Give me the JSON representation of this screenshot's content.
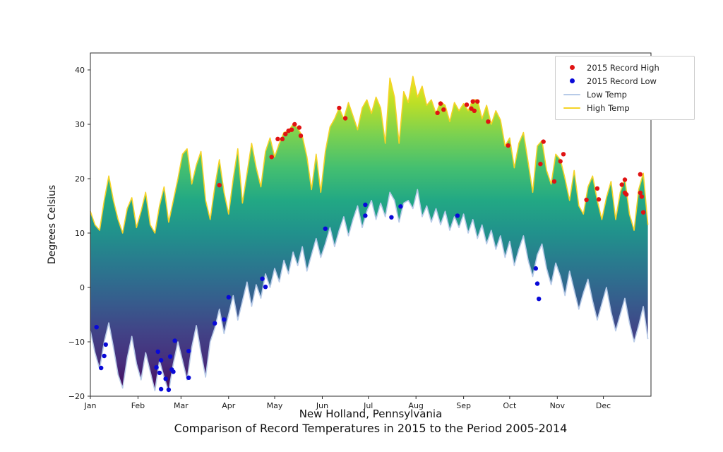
{
  "chart": {
    "ylabel": "Degrees Celsius",
    "xlabel": "New Holland, Pennsylvania",
    "caption": "Comparison of Record Temperatures in 2015 to the Period 2005-2014",
    "y_tick_labels": [
      "40",
      "30",
      "20",
      "10",
      "0",
      "−10",
      "−20"
    ],
    "x_tick_labels": [
      "Jan",
      "Feb",
      "Mar",
      "Apr",
      "May",
      "Jun",
      "Jul",
      "Aug",
      "Sep",
      "Oct",
      "Nov",
      "Dec"
    ],
    "legend": {
      "items": [
        {
          "label": "2015 Record High",
          "marker": "dot",
          "color_key": "record_high"
        },
        {
          "label": "2015 Record Low",
          "marker": "dot",
          "color_key": "record_low"
        },
        {
          "label": "Low Temp",
          "marker": "line",
          "color_key": "low_line"
        },
        {
          "label": "High Temp",
          "marker": "line",
          "color_key": "high_line"
        }
      ]
    },
    "colors": {
      "high_line": "#f5d327",
      "low_line": "#b8cbe8",
      "record_high": "#e01313",
      "record_low": "#0909d8",
      "spine": "#2b2b2b",
      "tick_text": "#1a1a1a",
      "viridis_top_to_bottom": [
        "#fde725",
        "#bddf26",
        "#7ad151",
        "#44bf70",
        "#22a884",
        "#21918c",
        "#2a788e",
        "#355f8d",
        "#414487",
        "#472d7b",
        "#440154"
      ]
    }
  },
  "chart_data": {
    "type": "area",
    "title": "Comparison of Record Temperatures in 2015 to the Period 2005-2014",
    "location": "New Holland, Pennsylvania",
    "ylabel": "Degrees Celsius",
    "ylim": [
      -20,
      43
    ],
    "y_tick_values": [
      40,
      30,
      20,
      10,
      0,
      -10,
      -20
    ],
    "x_unit": "day_of_year",
    "days_in_year": 365,
    "month_start_days": [
      0,
      31,
      59,
      90,
      120,
      151,
      181,
      212,
      243,
      273,
      304,
      334
    ],
    "sample_step_days": 3,
    "series": [
      {
        "name": "High Temp",
        "values": [
          14,
          11.5,
          10.5,
          16,
          20.5,
          16,
          12.5,
          10,
          14.5,
          16.5,
          11,
          14,
          17.5,
          11.5,
          10,
          15,
          18.5,
          12,
          16,
          20,
          24.5,
          25.5,
          19,
          22.5,
          25,
          16,
          12.5,
          18.5,
          23.5,
          17.5,
          13.5,
          20,
          25.5,
          15.5,
          21,
          26.5,
          22,
          18.5,
          25,
          27.5,
          24,
          26.5,
          28.5,
          28.8,
          30,
          29.3,
          27.8,
          24,
          18,
          24.5,
          17.5,
          25,
          29.5,
          31,
          33,
          31,
          34,
          31.5,
          29,
          33,
          34.5,
          32,
          35,
          33,
          26.5,
          38.5,
          35,
          26.5,
          36,
          34,
          38.8,
          35,
          37,
          33.5,
          34.5,
          32,
          34.2,
          33.5,
          30.5,
          34,
          32.5,
          33.8,
          32.5,
          34.5,
          34.5,
          31,
          33.5,
          30,
          32.5,
          30.8,
          26,
          27.5,
          22,
          26.5,
          28.5,
          23,
          17.5,
          26,
          27,
          21.5,
          19,
          24.5,
          23.5,
          20,
          16,
          21.5,
          15,
          13.5,
          18.5,
          20.5,
          16,
          12.5,
          16.5,
          19.5,
          12.5,
          17.5,
          20,
          13.5,
          10.5,
          18,
          21,
          11.5
        ]
      },
      {
        "name": "Low Temp",
        "values": [
          -8,
          -12,
          -15,
          -10,
          -6.5,
          -11,
          -16,
          -18.5,
          -13,
          -9,
          -14,
          -17,
          -12,
          -15.5,
          -19,
          -13.5,
          -16.5,
          -19.2,
          -14,
          -10,
          -13.5,
          -17,
          -11,
          -7,
          -12,
          -16.5,
          -10,
          -7.5,
          -4,
          -8.5,
          -5,
          -1.5,
          -6,
          -2.5,
          1,
          -3.5,
          0.5,
          -2,
          2.5,
          0,
          3.5,
          1,
          5,
          2.5,
          6.5,
          4,
          7.5,
          3,
          6,
          9,
          5.5,
          8,
          11,
          7.5,
          10.5,
          13,
          9.5,
          12.5,
          15,
          11,
          14,
          16,
          12.5,
          15.5,
          13,
          17.5,
          16,
          12,
          15.5,
          16,
          14.5,
          18,
          13,
          15,
          12,
          14.5,
          11.5,
          14,
          10.5,
          13,
          11,
          13.5,
          10,
          12.5,
          9,
          11.5,
          8,
          10.5,
          7,
          9.5,
          5.5,
          8.5,
          4,
          7,
          9.5,
          5,
          2,
          6,
          8,
          3.5,
          0.5,
          4.5,
          2,
          -1.5,
          3,
          -0.5,
          -4,
          -1,
          1.5,
          -2.5,
          -6,
          -3,
          0,
          -4.5,
          -8,
          -5,
          -2,
          -6.5,
          -10,
          -7,
          -3.5,
          -9.5
        ]
      }
    ],
    "record_high_points": [
      [
        84,
        18.8
      ],
      [
        118,
        24
      ],
      [
        122,
        27.3
      ],
      [
        125,
        27.3
      ],
      [
        127,
        28.2
      ],
      [
        129,
        28.8
      ],
      [
        131,
        29
      ],
      [
        133,
        30
      ],
      [
        136,
        29.4
      ],
      [
        137,
        27.9
      ],
      [
        162,
        33
      ],
      [
        166,
        31.1
      ],
      [
        226,
        32.1
      ],
      [
        228,
        33.8
      ],
      [
        230,
        32.7
      ],
      [
        245,
        33.6
      ],
      [
        248,
        32.9
      ],
      [
        249,
        34.2
      ],
      [
        250,
        32.5
      ],
      [
        252,
        34.2
      ],
      [
        259,
        30.5
      ],
      [
        272,
        26.1
      ],
      [
        293,
        22.7
      ],
      [
        295,
        26.8
      ],
      [
        302,
        19.5
      ],
      [
        306,
        23.2
      ],
      [
        308,
        24.5
      ],
      [
        323,
        16.1
      ],
      [
        330,
        18.2
      ],
      [
        331,
        16.2
      ],
      [
        346,
        18.9
      ],
      [
        348,
        19.8
      ],
      [
        348,
        17.4
      ],
      [
        349,
        17.1
      ],
      [
        358,
        20.8
      ],
      [
        358,
        17.4
      ],
      [
        359,
        16.7
      ],
      [
        360,
        13.8
      ]
    ],
    "record_low_points": [
      [
        4,
        -7.3
      ],
      [
        7,
        -14.8
      ],
      [
        9,
        -12.6
      ],
      [
        10,
        -10.5
      ],
      [
        43,
        -14.7
      ],
      [
        44,
        -11.8
      ],
      [
        45,
        -15.7
      ],
      [
        46,
        -18.7
      ],
      [
        46,
        -13.4
      ],
      [
        49,
        -16.8
      ],
      [
        51,
        -18.8
      ],
      [
        52,
        -12.7
      ],
      [
        53,
        -15.1
      ],
      [
        54,
        -15.5
      ],
      [
        55,
        -9.8
      ],
      [
        64,
        -16.6
      ],
      [
        64,
        -11.7
      ],
      [
        81,
        -6.6
      ],
      [
        87,
        -5.9
      ],
      [
        90,
        -1.8
      ],
      [
        112,
        1.6
      ],
      [
        114,
        0.1
      ],
      [
        153,
        10.8
      ],
      [
        179,
        15.2
      ],
      [
        179,
        13.2
      ],
      [
        196,
        12.9
      ],
      [
        202,
        14.9
      ],
      [
        239,
        13.2
      ],
      [
        290,
        3.5
      ],
      [
        291,
        0.7
      ],
      [
        292,
        -2.1
      ]
    ],
    "legend_entries": [
      "2015 Record High",
      "2015 Record Low",
      "Low Temp",
      "High Temp"
    ],
    "legend_position": "upper right",
    "grid": false
  }
}
